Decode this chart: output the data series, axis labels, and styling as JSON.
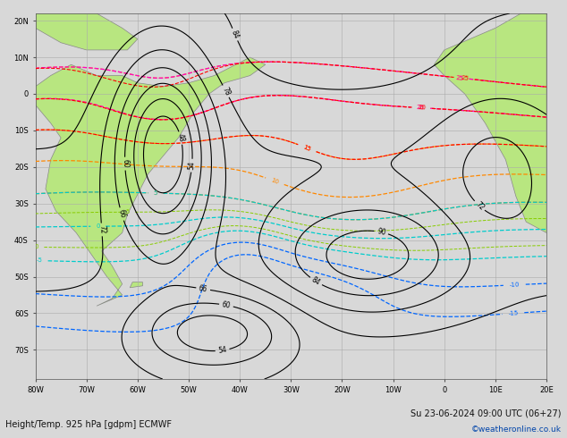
{
  "title_left": "Height/Temp. 925 hPa [gdpm] ECMWF",
  "title_right": "Su 23-06-2024 09:00 UTC (06+27)",
  "copyright": "©weatheronline.co.uk",
  "ocean_color": "#d8d8d8",
  "land_color": "#b8e680",
  "land_edge": "#888888",
  "grid_color": "#aaaaaa",
  "figsize": [
    6.34,
    4.9
  ],
  "dpi": 100,
  "xlim": [
    -80,
    20
  ],
  "ylim": [
    -78,
    22
  ],
  "xticks": [
    -80,
    -70,
    -60,
    -50,
    -40,
    -30,
    -20,
    -10,
    0,
    10,
    20
  ],
  "yticks": [
    -70,
    -60,
    -50,
    -40,
    -30,
    -20,
    -10,
    0,
    10,
    20
  ],
  "xlabels": [
    "80W",
    "70W",
    "60W",
    "50W",
    "40W",
    "30W",
    "20W",
    "10W",
    "0",
    "10E",
    "20E"
  ],
  "ylabels": [
    "70S",
    "60S",
    "50S",
    "40S",
    "30S",
    "20S",
    "10S",
    "0",
    "10N",
    "20N"
  ]
}
